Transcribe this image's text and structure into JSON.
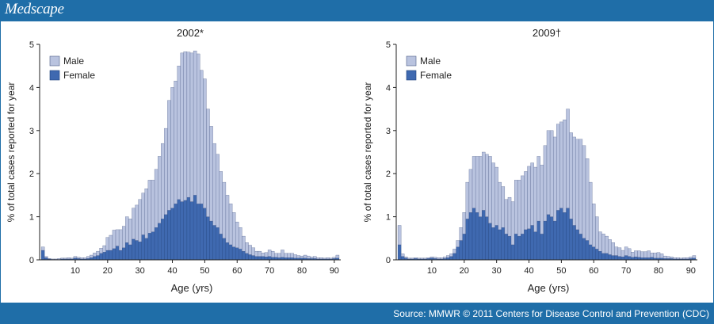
{
  "brand": "Medscape",
  "source": "Source: MMWR © 2011 Centers for Disease Control and Prevention (CDC)",
  "colors": {
    "male": "#b9c3df",
    "female": "#3f69b0",
    "header": "#1f6ea8"
  },
  "chart_data": [
    {
      "type": "bar",
      "stacked": true,
      "title": "2002*",
      "xlabel": "Age (yrs)",
      "ylabel": "% of total cases reported for year",
      "ylim": [
        0,
        5
      ],
      "xlim": [
        -1,
        92
      ],
      "yticks": [
        0,
        1,
        2,
        3,
        4,
        5
      ],
      "xticks": [
        10,
        20,
        30,
        40,
        50,
        60,
        70,
        80,
        90
      ],
      "legend": {
        "position": "top-left",
        "entries": [
          "Male",
          "Female"
        ]
      },
      "x": [
        0,
        1,
        2,
        3,
        4,
        5,
        6,
        7,
        8,
        9,
        10,
        11,
        12,
        13,
        14,
        15,
        16,
        17,
        18,
        19,
        20,
        21,
        22,
        23,
        24,
        25,
        26,
        27,
        28,
        29,
        30,
        31,
        32,
        33,
        34,
        35,
        36,
        37,
        38,
        39,
        40,
        41,
        42,
        43,
        44,
        45,
        46,
        47,
        48,
        49,
        50,
        51,
        52,
        53,
        54,
        55,
        56,
        57,
        58,
        59,
        60,
        61,
        62,
        63,
        64,
        65,
        66,
        67,
        68,
        69,
        70,
        71,
        72,
        73,
        74,
        75,
        76,
        77,
        78,
        79,
        80,
        81,
        82,
        83,
        84,
        85,
        86,
        87,
        88,
        89,
        90,
        91
      ],
      "series": [
        {
          "name": "Female",
          "values": [
            0.22,
            0.05,
            0.02,
            0.01,
            0.01,
            0.01,
            0.02,
            0.02,
            0.02,
            0.02,
            0.04,
            0.03,
            0.02,
            0.02,
            0.03,
            0.05,
            0.08,
            0.1,
            0.15,
            0.18,
            0.22,
            0.22,
            0.26,
            0.32,
            0.22,
            0.28,
            0.4,
            0.35,
            0.48,
            0.45,
            0.42,
            0.58,
            0.5,
            0.62,
            0.65,
            0.75,
            0.85,
            0.95,
            1.05,
            1.15,
            1.2,
            1.3,
            1.4,
            1.35,
            1.38,
            1.45,
            1.35,
            1.5,
            1.3,
            1.3,
            1.2,
            1.0,
            0.9,
            0.8,
            0.75,
            0.6,
            0.5,
            0.4,
            0.35,
            0.3,
            0.28,
            0.25,
            0.2,
            0.15,
            0.12,
            0.1,
            0.08,
            0.08,
            0.08,
            0.07,
            0.08,
            0.06,
            0.06,
            0.05,
            0.06,
            0.05,
            0.05,
            0.05,
            0.04,
            0.04,
            0.04,
            0.04,
            0.03,
            0.03,
            0.03,
            0.02,
            0.02,
            0.02,
            0.02,
            0.02,
            0.03,
            0.04
          ]
        },
        {
          "name": "Male",
          "values": [
            0.08,
            0.03,
            0.01,
            0.01,
            0.01,
            0.02,
            0.02,
            0.02,
            0.03,
            0.02,
            0.04,
            0.03,
            0.03,
            0.03,
            0.05,
            0.06,
            0.08,
            0.1,
            0.12,
            0.15,
            0.3,
            0.35,
            0.43,
            0.38,
            0.48,
            0.5,
            0.6,
            0.6,
            0.72,
            0.82,
            0.98,
            0.97,
            1.15,
            1.23,
            1.2,
            1.35,
            1.55,
            1.75,
            2.0,
            2.55,
            2.8,
            2.85,
            3.1,
            3.45,
            3.45,
            3.37,
            3.45,
            3.35,
            3.48,
            3.1,
            3.0,
            2.5,
            2.2,
            1.9,
            1.7,
            1.45,
            1.3,
            1.1,
            0.95,
            0.8,
            0.6,
            0.5,
            0.35,
            0.25,
            0.22,
            0.18,
            0.12,
            0.12,
            0.08,
            0.1,
            0.15,
            0.14,
            0.09,
            0.1,
            0.17,
            0.1,
            0.1,
            0.1,
            0.08,
            0.06,
            0.05,
            0.07,
            0.06,
            0.04,
            0.05,
            0.03,
            0.03,
            0.02,
            0.03,
            0.02,
            0.03,
            0.07
          ]
        }
      ]
    },
    {
      "type": "bar",
      "stacked": true,
      "title": "2009†",
      "xlabel": "Age (yrs)",
      "ylabel": "% of total cases reported for year",
      "ylim": [
        0,
        5
      ],
      "xlim": [
        -1,
        92
      ],
      "yticks": [
        0,
        1,
        2,
        3,
        4,
        5
      ],
      "xticks": [
        10,
        20,
        30,
        40,
        50,
        60,
        70,
        80,
        90
      ],
      "legend": {
        "position": "top-left",
        "entries": [
          "Male",
          "Female"
        ]
      },
      "x": [
        0,
        1,
        2,
        3,
        4,
        5,
        6,
        7,
        8,
        9,
        10,
        11,
        12,
        13,
        14,
        15,
        16,
        17,
        18,
        19,
        20,
        21,
        22,
        23,
        24,
        25,
        26,
        27,
        28,
        29,
        30,
        31,
        32,
        33,
        34,
        35,
        36,
        37,
        38,
        39,
        40,
        41,
        42,
        43,
        44,
        45,
        46,
        47,
        48,
        49,
        50,
        51,
        52,
        53,
        54,
        55,
        56,
        57,
        58,
        59,
        60,
        61,
        62,
        63,
        64,
        65,
        66,
        67,
        68,
        69,
        70,
        71,
        72,
        73,
        74,
        75,
        76,
        77,
        78,
        79,
        80,
        81,
        82,
        83,
        84,
        85,
        86,
        87,
        88,
        89,
        90,
        91
      ],
      "series": [
        {
          "name": "Female",
          "values": [
            0.35,
            0.08,
            0.04,
            0.02,
            0.02,
            0.03,
            0.02,
            0.02,
            0.02,
            0.03,
            0.04,
            0.03,
            0.02,
            0.02,
            0.03,
            0.05,
            0.08,
            0.15,
            0.3,
            0.45,
            0.6,
            0.95,
            1.1,
            1.2,
            1.1,
            1.0,
            1.15,
            1.0,
            0.85,
            0.75,
            0.8,
            0.7,
            0.75,
            0.6,
            0.55,
            0.35,
            0.6,
            0.55,
            0.6,
            0.7,
            0.72,
            0.8,
            0.65,
            0.9,
            0.6,
            0.9,
            1.05,
            1.0,
            0.9,
            1.15,
            1.2,
            1.1,
            1.2,
            0.95,
            0.8,
            0.7,
            0.6,
            0.5,
            0.45,
            0.35,
            0.3,
            0.25,
            0.2,
            0.15,
            0.15,
            0.12,
            0.1,
            0.1,
            0.08,
            0.07,
            0.1,
            0.08,
            0.06,
            0.07,
            0.06,
            0.05,
            0.05,
            0.05,
            0.06,
            0.04,
            0.04,
            0.04,
            0.03,
            0.03,
            0.03,
            0.02,
            0.02,
            0.02,
            0.02,
            0.02,
            0.03,
            0.04
          ]
        },
        {
          "name": "Male",
          "values": [
            0.45,
            0.06,
            0.03,
            0.02,
            0.02,
            0.02,
            0.02,
            0.02,
            0.02,
            0.02,
            0.03,
            0.03,
            0.03,
            0.03,
            0.04,
            0.05,
            0.06,
            0.1,
            0.15,
            0.3,
            0.5,
            0.85,
            1.0,
            1.2,
            1.3,
            1.4,
            1.35,
            1.45,
            1.55,
            1.5,
            1.35,
            1.1,
            0.95,
            0.8,
            0.9,
            1.0,
            1.25,
            1.3,
            1.35,
            1.35,
            1.45,
            1.45,
            1.5,
            1.5,
            1.6,
            1.75,
            1.95,
            2.0,
            1.95,
            2.0,
            2.0,
            2.15,
            2.3,
            2.0,
            2.05,
            2.1,
            2.2,
            2.15,
            1.9,
            1.45,
            1.0,
            0.75,
            0.45,
            0.45,
            0.4,
            0.35,
            0.3,
            0.2,
            0.2,
            0.15,
            0.2,
            0.18,
            0.12,
            0.14,
            0.15,
            0.14,
            0.14,
            0.16,
            0.1,
            0.12,
            0.13,
            0.1,
            0.06,
            0.05,
            0.04,
            0.03,
            0.03,
            0.02,
            0.03,
            0.03,
            0.04,
            0.06
          ]
        }
      ]
    }
  ]
}
